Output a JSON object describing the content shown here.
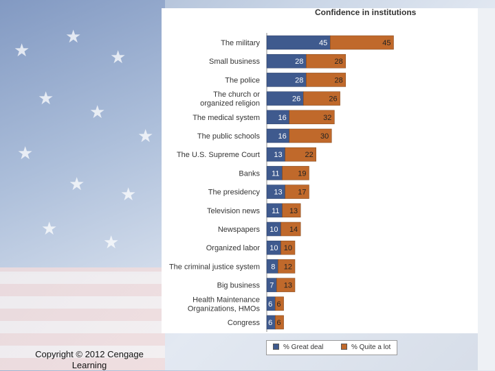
{
  "chart_data": {
    "type": "bar",
    "stacked": true,
    "orientation": "horizontal",
    "title": "Confidence in institutions",
    "categories": [
      "The military",
      "Small business",
      "The police",
      "The church or organized religion",
      "The medical system",
      "The public schools",
      "The U.S. Supreme Court",
      "Banks",
      "The presidency",
      "Television news",
      "Newspapers",
      "Organized labor",
      "The criminal justice system",
      "Big business",
      "Health Maintenance Organizations, HMOs",
      "Congress"
    ],
    "category_lines": [
      [
        "The military"
      ],
      [
        "Small business"
      ],
      [
        "The police"
      ],
      [
        "The church or",
        "organized religion"
      ],
      [
        "The medical system"
      ],
      [
        "The public schools"
      ],
      [
        "The U.S. Supreme Court"
      ],
      [
        "Banks"
      ],
      [
        "The presidency"
      ],
      [
        "Television news"
      ],
      [
        "Newspapers"
      ],
      [
        "Organized labor"
      ],
      [
        "The criminal justice system"
      ],
      [
        "Big business"
      ],
      [
        "Health Maintenance",
        "Organizations, HMOs"
      ],
      [
        "Congress"
      ]
    ],
    "series": [
      {
        "name": "% Great deal",
        "color": "#3f5a8e",
        "values": [
          45,
          28,
          28,
          26,
          16,
          16,
          13,
          11,
          13,
          11,
          10,
          10,
          8,
          7,
          6,
          6
        ]
      },
      {
        "name": "% Quite a lot",
        "color": "#c0692b",
        "values": [
          45,
          28,
          28,
          26,
          32,
          30,
          22,
          19,
          17,
          13,
          14,
          10,
          12,
          13,
          6,
          6
        ]
      }
    ],
    "legend_position": "bottom",
    "grid": false
  },
  "footer": {
    "copyright": "Copyright © 2012 Cengage Learning"
  },
  "colors": {
    "great_deal": "#3f5a8e",
    "quite_a_lot": "#c0692b"
  }
}
